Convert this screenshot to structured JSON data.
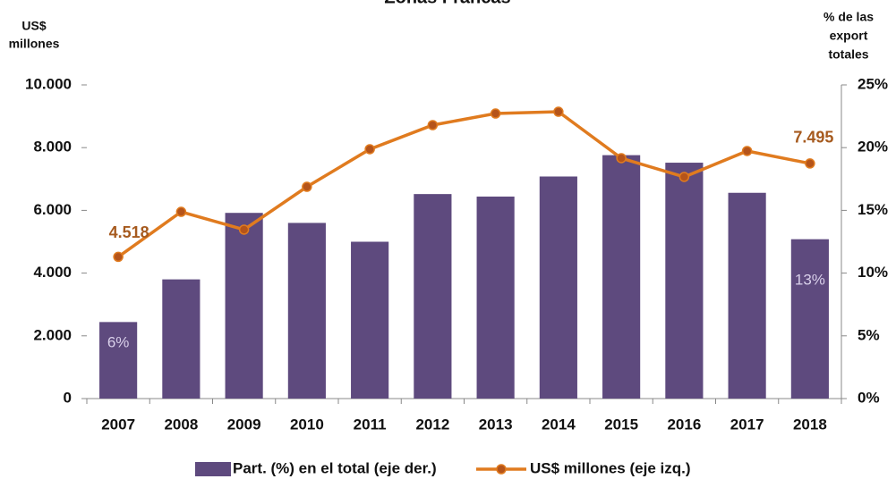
{
  "chart_data": {
    "type": "bar-line",
    "title": "Zonas Francas",
    "y_label": [
      "US$",
      "millones"
    ],
    "y2_label": [
      "% de las",
      "export",
      "totales"
    ],
    "categories": [
      "2007",
      "2008",
      "2009",
      "2010",
      "2011",
      "2012",
      "2013",
      "2014",
      "2015",
      "2016",
      "2017",
      "2018"
    ],
    "series": [
      {
        "name": "Part. (%) en el total (eje der.)",
        "type": "bar",
        "axis": "y2",
        "color": "#5e4a7e",
        "values": [
          6.1,
          9.5,
          14.8,
          14.0,
          12.5,
          16.3,
          16.1,
          17.7,
          19.4,
          18.8,
          16.4,
          12.7
        ],
        "value_labels": [
          "6%",
          null,
          null,
          null,
          null,
          null,
          null,
          null,
          null,
          null,
          null,
          "13%"
        ]
      },
      {
        "name": "US$ millones (eje izq.)",
        "type": "line",
        "axis": "y",
        "color": "#e07b1f",
        "values": [
          4518,
          5954,
          5385,
          6752,
          7949,
          8718,
          9088,
          9145,
          7664,
          7066,
          7892,
          7495
        ],
        "value_labels": [
          "4.518",
          null,
          null,
          null,
          null,
          null,
          null,
          null,
          null,
          null,
          null,
          "7.495"
        ]
      }
    ],
    "ylim": [
      0,
      10000
    ],
    "yticks": [
      0,
      {
        "value": 2000,
        "label": "2.000"
      },
      {
        "value": 4000,
        "label": "4.000"
      },
      {
        "value": 6000,
        "label": "6.000"
      },
      {
        "value": 8000,
        "label": "8.000"
      },
      {
        "value": 10000,
        "label": "10.000"
      }
    ],
    "y2lim": [
      0,
      25
    ],
    "y2ticks": [
      {
        "value": 0,
        "label": "0%"
      },
      {
        "value": 5,
        "label": "5%"
      },
      {
        "value": 10,
        "label": "10%"
      },
      {
        "value": 15,
        "label": "15%"
      },
      {
        "value": 20,
        "label": "20%"
      },
      {
        "value": 25,
        "label": "25%"
      }
    ],
    "grid": false,
    "legend": "bottom"
  }
}
